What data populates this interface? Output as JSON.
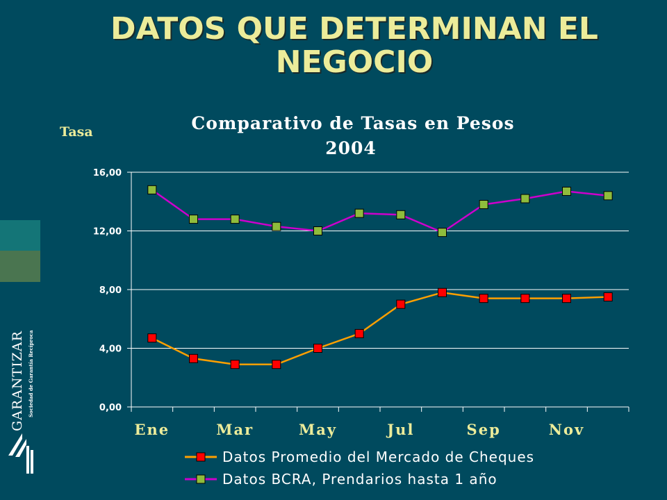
{
  "slide": {
    "title": "DATOS QUE DETERMINAN EL NEGOCIO"
  },
  "logo": {
    "name": "GARANTIZAR",
    "tagline": "Sociedad de Garantía Recíproca"
  },
  "colors": {
    "background": "#004a5e",
    "title": "#ecec9a",
    "series1": "#ffa000",
    "series2": "#cc00cc",
    "marker1": "#ff0000",
    "marker2": "#8fbc3c"
  },
  "chart_data": {
    "type": "line",
    "title": "Comparativo de Tasas en Pesos",
    "subtitle": "2004",
    "ylabel": "Tasa",
    "ylim": [
      0,
      16
    ],
    "yticks": [
      0,
      4,
      8,
      12,
      16
    ],
    "ytick_labels": [
      "0,00",
      "4,00",
      "8,00",
      "12,00",
      "16,00"
    ],
    "categories": [
      "Ene",
      "Feb",
      "Mar",
      "Abr",
      "May",
      "Jun",
      "Jul",
      "Ago",
      "Sep",
      "Oct",
      "Nov",
      "Dic"
    ],
    "shown_x_labels": [
      "Ene",
      "Mar",
      "May",
      "Jul",
      "Sep",
      "Nov"
    ],
    "grid": "horizontal",
    "legend_position": "bottom",
    "series": [
      {
        "name": "Datos Promedio del Mercado de Cheques",
        "values": [
          4.7,
          3.3,
          2.9,
          2.9,
          4.0,
          5.0,
          7.0,
          7.8,
          7.4,
          7.4,
          7.4,
          7.5
        ]
      },
      {
        "name": "Datos BCRA, Prendarios hasta 1 año",
        "values": [
          14.8,
          12.8,
          12.8,
          12.3,
          12.0,
          13.2,
          13.1,
          11.9,
          13.8,
          14.2,
          14.7,
          14.4
        ]
      }
    ]
  }
}
